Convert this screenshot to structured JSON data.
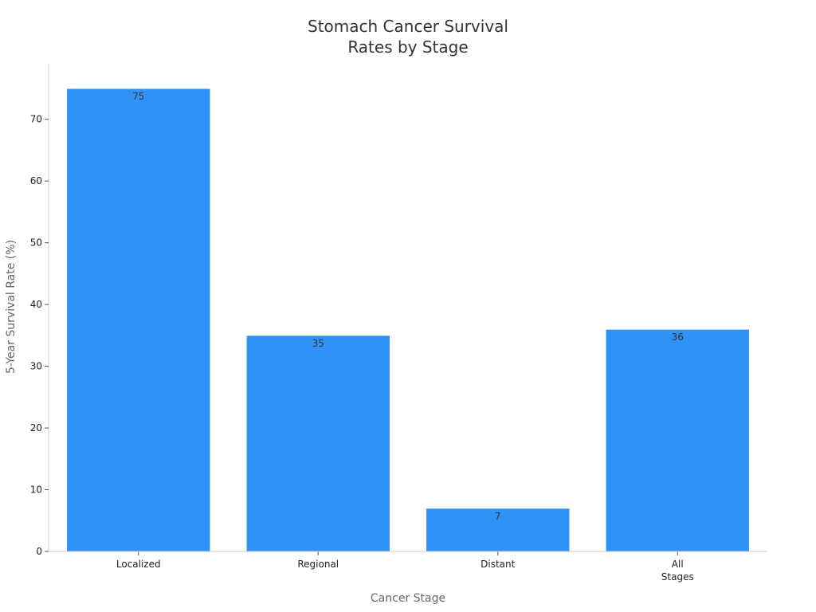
{
  "chart_data": {
    "type": "bar",
    "title_lines": [
      "Stomach Cancer Survival",
      "Rates by Stage"
    ],
    "xlabel": "Cancer Stage",
    "ylabel": "5-Year Survival Rate (%)",
    "categories": [
      [
        "Localized"
      ],
      [
        "Regional"
      ],
      [
        "Distant"
      ],
      [
        "All",
        "Stages"
      ]
    ],
    "values": [
      75,
      35,
      7,
      36
    ],
    "ylim": [
      0,
      79
    ],
    "yticks": [
      0,
      10,
      20,
      30,
      40,
      50,
      60,
      70
    ],
    "bar_color": "#2f92f7",
    "grid": false,
    "legend": "none"
  }
}
